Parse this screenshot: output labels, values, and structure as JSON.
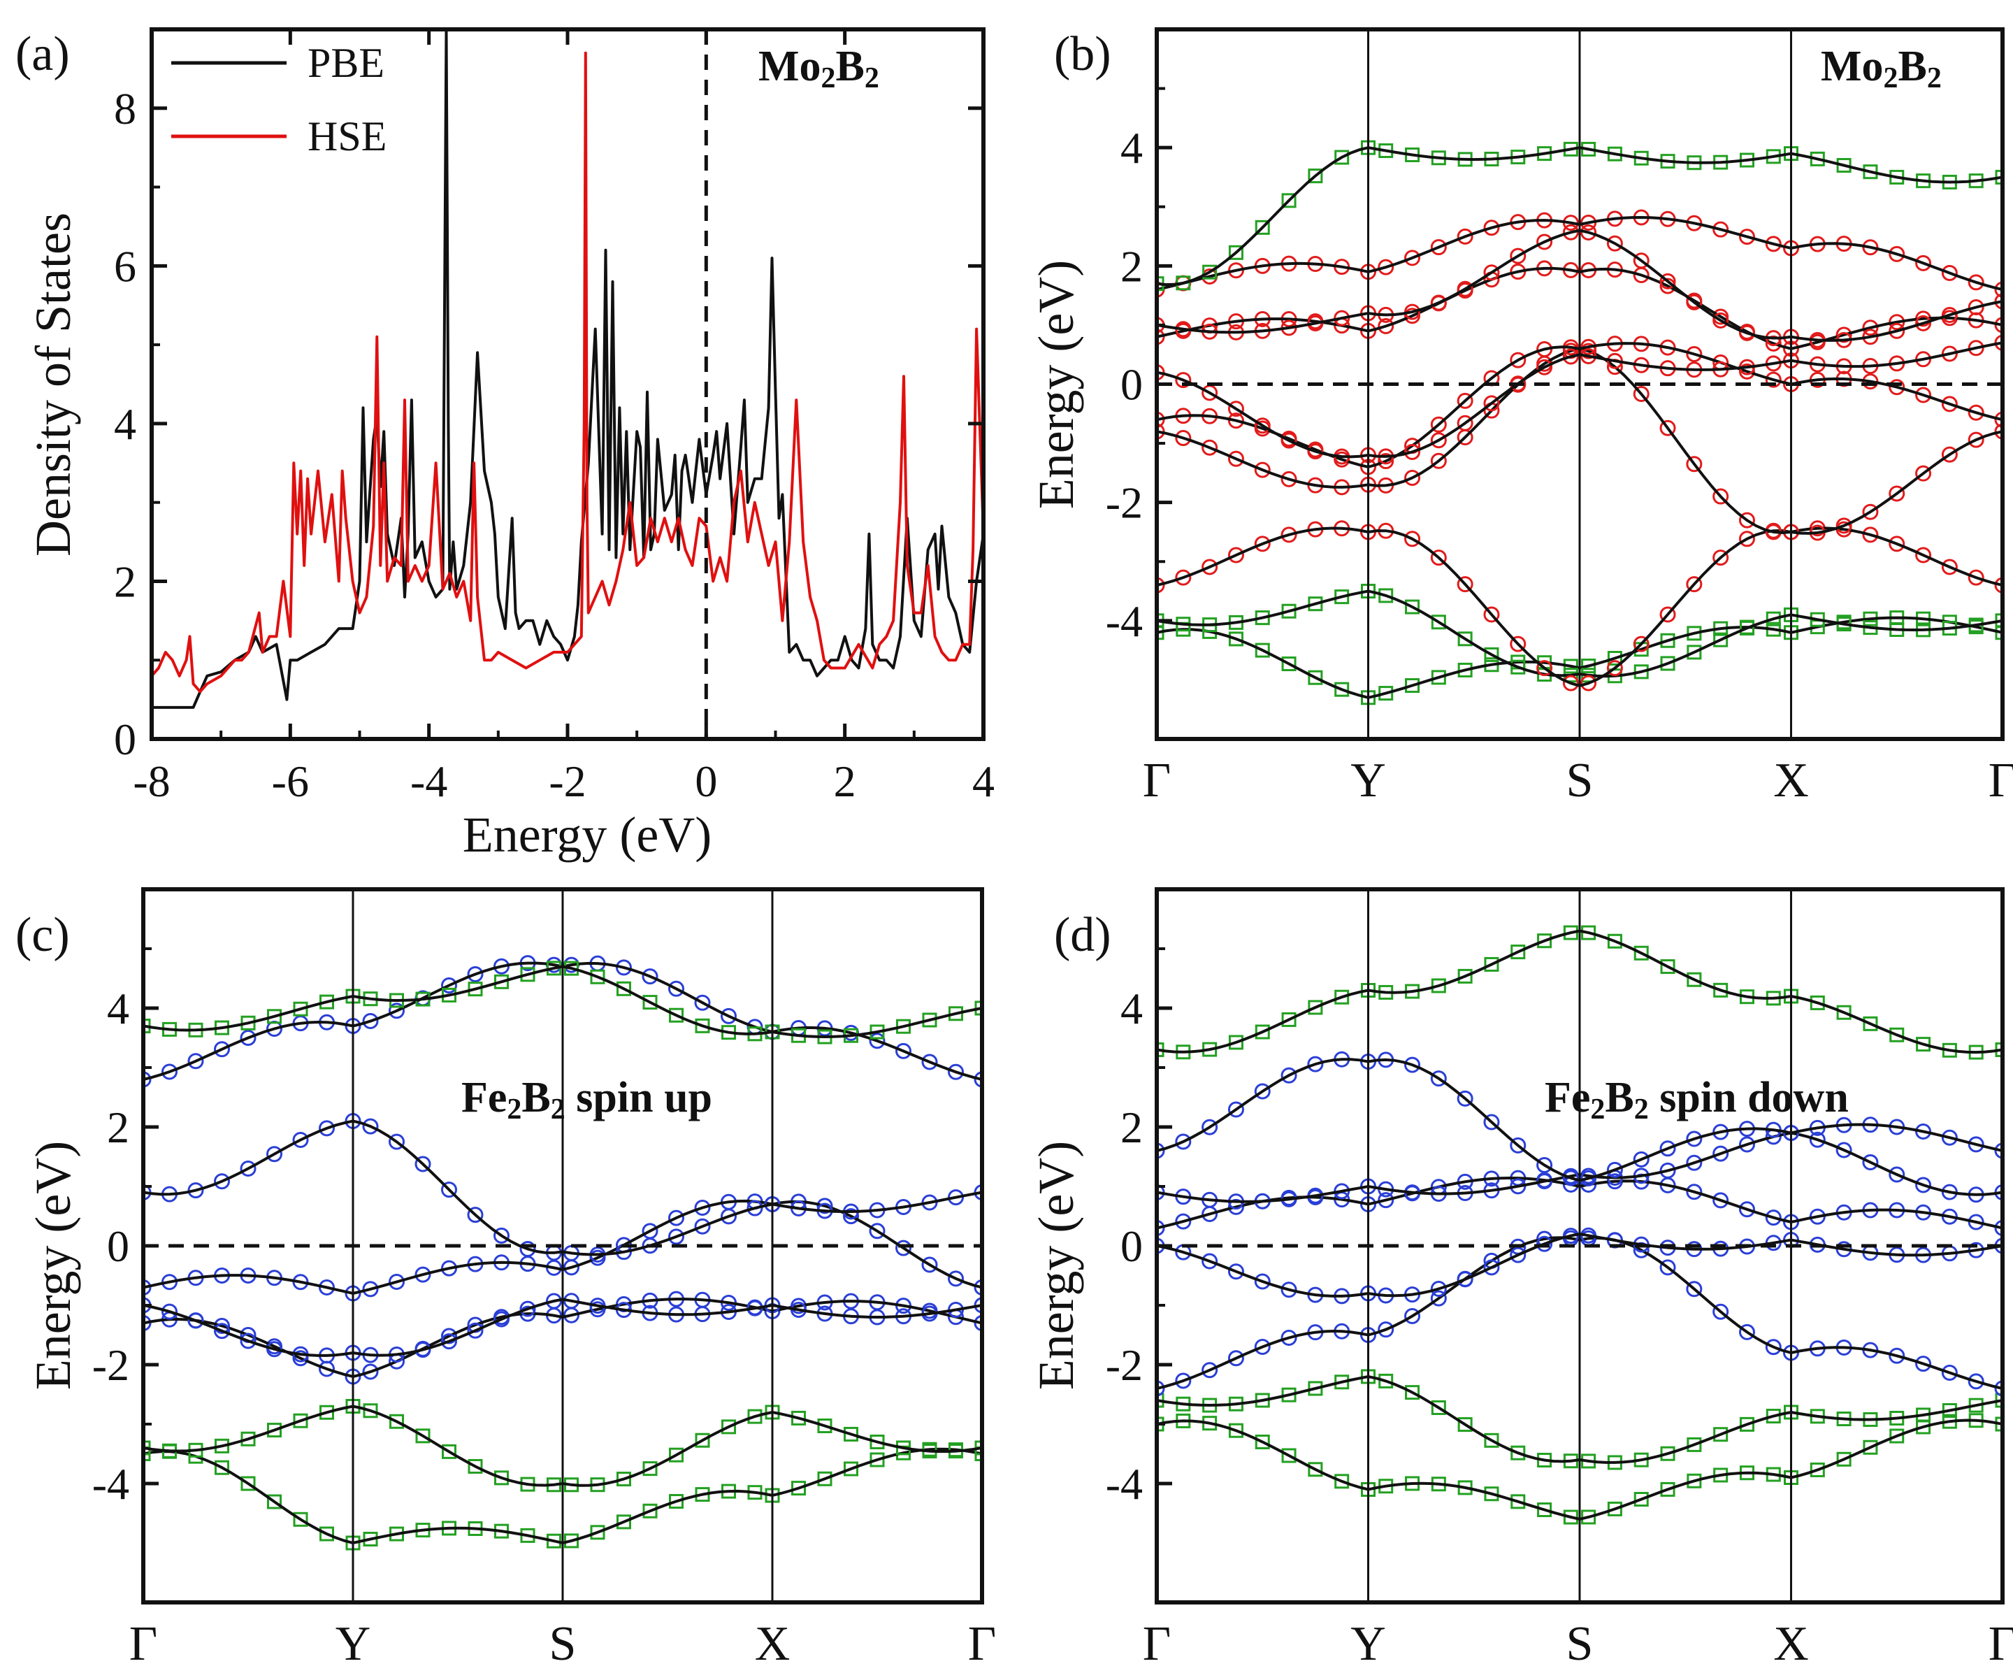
{
  "figure": {
    "panel_tags": [
      "(a)",
      "(b)",
      "(c)",
      "(d)"
    ]
  },
  "colors": {
    "pbe": "#111111",
    "hse": "#e01010",
    "boron_projection": "#23a021",
    "mo_projection": "#e21b1b",
    "fe_projection": "#2a3fd6",
    "band": "#111111",
    "axis": "#111111"
  },
  "chart_data": [
    {
      "panel": "(a)",
      "type": "line",
      "title": "Mo2B2",
      "title_main": "Mo",
      "title_sub1": "2",
      "title_mid": "B",
      "title_sub2": "2",
      "xlabel": "Energy (eV)",
      "ylabel": "Density of States",
      "xlim": [
        -8,
        4
      ],
      "ylim": [
        0,
        9
      ],
      "xticks": [
        "-8",
        "-6",
        "-4",
        "-2",
        "0",
        "2",
        "4"
      ],
      "xtick_values": [
        -8,
        -6,
        -4,
        -2,
        0,
        2,
        4
      ],
      "yticks": [
        "0",
        "2",
        "4",
        "6",
        "8"
      ],
      "ytick_values": [
        0,
        2,
        4,
        6,
        8
      ],
      "fermi_level": 0,
      "legend": [
        "PBE",
        "HSE"
      ],
      "series": [
        {
          "name": "PBE",
          "x": [
            -8.0,
            -7.4,
            -7.3,
            -7.2,
            -7.0,
            -6.8,
            -6.6,
            -6.5,
            -6.4,
            -6.2,
            -6.05,
            -6.0,
            -5.9,
            -5.7,
            -5.5,
            -5.3,
            -5.1,
            -5.0,
            -4.95,
            -4.9,
            -4.8,
            -4.75,
            -4.7,
            -4.65,
            -4.6,
            -4.5,
            -4.4,
            -4.35,
            -4.3,
            -4.25,
            -4.2,
            -4.1,
            -4.0,
            -3.9,
            -3.8,
            -3.75,
            -3.72,
            -3.7,
            -3.65,
            -3.6,
            -3.5,
            -3.4,
            -3.3,
            -3.2,
            -3.1,
            -3.05,
            -3.0,
            -2.9,
            -2.8,
            -2.75,
            -2.7,
            -2.6,
            -2.5,
            -2.4,
            -2.3,
            -2.2,
            -2.1,
            -2.0,
            -1.9,
            -1.85,
            -1.8,
            -1.7,
            -1.6,
            -1.5,
            -1.45,
            -1.4,
            -1.35,
            -1.3,
            -1.25,
            -1.2,
            -1.15,
            -1.1,
            -1.0,
            -0.95,
            -0.9,
            -0.85,
            -0.8,
            -0.75,
            -0.7,
            -0.6,
            -0.5,
            -0.45,
            -0.4,
            -0.35,
            -0.3,
            -0.2,
            -0.1,
            0.0,
            0.1,
            0.15,
            0.2,
            0.3,
            0.4,
            0.5,
            0.55,
            0.6,
            0.7,
            0.8,
            0.9,
            0.95,
            1.0,
            1.05,
            1.1,
            1.2,
            1.3,
            1.4,
            1.5,
            1.6,
            1.7,
            1.8,
            1.9,
            2.0,
            2.1,
            2.2,
            2.3,
            2.35,
            2.4,
            2.5,
            2.6,
            2.7,
            2.8,
            2.9,
            3.0,
            3.1,
            3.2,
            3.3,
            3.35,
            3.4,
            3.5,
            3.6,
            3.7,
            3.8,
            3.9,
            4.0
          ],
          "y": [
            0.4,
            0.4,
            0.6,
            0.8,
            0.85,
            1.0,
            1.1,
            1.3,
            1.1,
            1.2,
            0.5,
            1.0,
            1.0,
            1.1,
            1.2,
            1.4,
            1.4,
            2.0,
            4.2,
            2.5,
            3.8,
            4.1,
            3.2,
            3.9,
            2.6,
            2.2,
            2.8,
            1.8,
            2.6,
            4.3,
            2.3,
            2.5,
            2.0,
            1.8,
            1.9,
            9.0,
            4.0,
            1.9,
            2.5,
            1.9,
            2.2,
            3.0,
            4.9,
            3.4,
            3.0,
            2.6,
            1.8,
            1.4,
            2.8,
            1.6,
            1.4,
            1.5,
            1.5,
            1.2,
            1.5,
            1.3,
            1.2,
            1.0,
            1.3,
            1.7,
            2.5,
            3.5,
            5.2,
            2.6,
            6.2,
            2.4,
            5.8,
            2.3,
            4.2,
            2.6,
            3.9,
            2.4,
            3.9,
            3.7,
            2.3,
            4.4,
            2.4,
            2.6,
            3.8,
            2.9,
            3.1,
            3.6,
            2.4,
            3.4,
            3.6,
            3.0,
            3.8,
            3.1,
            3.6,
            3.9,
            3.3,
            4.0,
            2.6,
            3.7,
            4.3,
            3.0,
            3.3,
            3.3,
            4.2,
            6.1,
            4.4,
            2.8,
            3.1,
            1.1,
            1.2,
            1.0,
            1.0,
            0.8,
            0.9,
            1.0,
            1.0,
            1.3,
            1.0,
            0.9,
            1.4,
            2.6,
            1.2,
            1.0,
            1.0,
            0.9,
            1.3,
            2.8,
            1.5,
            1.3,
            2.4,
            2.6,
            1.9,
            2.7,
            1.8,
            1.6,
            1.2,
            1.1,
            2.0,
            2.6
          ]
        },
        {
          "name": "HSE",
          "x": [
            -8.0,
            -7.9,
            -7.8,
            -7.7,
            -7.6,
            -7.5,
            -7.45,
            -7.4,
            -7.3,
            -7.2,
            -7.0,
            -6.8,
            -6.7,
            -6.6,
            -6.45,
            -6.4,
            -6.3,
            -6.2,
            -6.1,
            -6.0,
            -5.95,
            -5.9,
            -5.85,
            -5.8,
            -5.75,
            -5.7,
            -5.6,
            -5.5,
            -5.4,
            -5.3,
            -5.25,
            -5.2,
            -5.1,
            -5.0,
            -4.9,
            -4.8,
            -4.75,
            -4.7,
            -4.65,
            -4.6,
            -4.5,
            -4.4,
            -4.35,
            -4.3,
            -4.2,
            -4.1,
            -4.0,
            -3.9,
            -3.8,
            -3.7,
            -3.6,
            -3.5,
            -3.4,
            -3.35,
            -3.3,
            -3.2,
            -3.1,
            -3.0,
            -2.8,
            -2.6,
            -2.4,
            -2.2,
            -2.0,
            -1.9,
            -1.8,
            -1.76,
            -1.74,
            -1.72,
            -1.7,
            -1.6,
            -1.5,
            -1.4,
            -1.3,
            -1.2,
            -1.1,
            -1.0,
            -0.9,
            -0.8,
            -0.7,
            -0.6,
            -0.5,
            -0.4,
            -0.3,
            -0.2,
            -0.1,
            0.0,
            0.1,
            0.2,
            0.3,
            0.4,
            0.5,
            0.6,
            0.7,
            0.8,
            0.9,
            1.0,
            1.1,
            1.2,
            1.3,
            1.4,
            1.5,
            1.6,
            1.7,
            1.8,
            1.9,
            2.0,
            2.2,
            2.4,
            2.5,
            2.6,
            2.7,
            2.8,
            2.85,
            2.9,
            3.0,
            3.1,
            3.2,
            3.3,
            3.4,
            3.5,
            3.6,
            3.7,
            3.8,
            3.85,
            3.9,
            4.0
          ],
          "y": [
            0.8,
            0.9,
            1.1,
            1.0,
            0.8,
            1.0,
            1.3,
            0.7,
            0.6,
            0.7,
            0.8,
            1.0,
            1.0,
            1.1,
            1.6,
            1.1,
            1.3,
            1.3,
            2.0,
            1.3,
            3.5,
            2.6,
            3.4,
            2.2,
            3.3,
            2.6,
            3.4,
            2.5,
            3.1,
            2.0,
            3.4,
            2.8,
            2.0,
            1.6,
            1.8,
            2.7,
            5.1,
            2.2,
            3.5,
            2.0,
            2.3,
            2.2,
            4.3,
            2.0,
            2.2,
            2.0,
            2.2,
            3.5,
            1.9,
            2.1,
            1.8,
            2.0,
            1.5,
            3.5,
            1.8,
            1.0,
            1.0,
            1.1,
            1.0,
            0.9,
            1.0,
            1.1,
            1.1,
            1.2,
            1.3,
            4.0,
            8.7,
            3.0,
            1.6,
            1.8,
            2.0,
            1.7,
            2.0,
            2.4,
            3.0,
            2.2,
            2.3,
            2.8,
            2.5,
            2.8,
            2.5,
            2.8,
            2.4,
            2.2,
            2.8,
            2.7,
            2.0,
            2.3,
            2.0,
            3.0,
            3.4,
            2.5,
            3.0,
            2.6,
            2.2,
            2.5,
            1.5,
            2.5,
            4.3,
            2.5,
            1.8,
            1.5,
            1.0,
            0.9,
            0.9,
            0.9,
            1.2,
            0.9,
            1.2,
            1.3,
            1.5,
            3.0,
            4.6,
            2.2,
            1.6,
            1.6,
            2.2,
            1.3,
            1.1,
            1.0,
            1.0,
            1.2,
            1.2,
            2.4,
            5.2,
            2.6
          ]
        }
      ]
    },
    {
      "panel": "(b)",
      "type": "line",
      "subtype": "band_structure",
      "title": "Mo2B2",
      "title_main": "Mo",
      "title_sub1": "2",
      "title_mid": "B",
      "title_sub2": "2",
      "ylabel": "Energy (eV)",
      "ylim": [
        -6,
        6
      ],
      "yticks": [
        "-4",
        "-2",
        "0",
        "2",
        "4"
      ],
      "ytick_values": [
        -4,
        -2,
        0,
        2,
        4
      ],
      "kpoints": [
        "Γ",
        "Y",
        "S",
        "X",
        "Γ"
      ],
      "fermi_level": 0,
      "projection_colors": [
        "#e21b1b",
        "#23a021"
      ],
      "bands_sampled_at_high_symmetry_points": [
        [
          -4.2,
          -5.3,
          -4.8,
          -4.2,
          -4.2
        ],
        [
          -4.0,
          -3.5,
          -4.9,
          -3.9,
          -4.0
        ],
        [
          -3.4,
          -2.5,
          -5.1,
          -2.5,
          -3.4
        ],
        [
          -0.8,
          -1.7,
          0.6,
          -2.5,
          -0.8
        ],
        [
          -0.6,
          -1.4,
          0.6,
          0.0,
          -0.6
        ],
        [
          0.2,
          -1.2,
          0.5,
          0.4,
          0.7
        ],
        [
          0.8,
          0.9,
          1.9,
          0.6,
          1.0
        ],
        [
          1.0,
          1.2,
          2.6,
          0.8,
          1.4
        ],
        [
          1.6,
          1.9,
          2.7,
          2.3,
          1.6
        ],
        [
          1.7,
          4.0,
          4.0,
          3.9,
          3.5
        ]
      ]
    },
    {
      "panel": "(c)",
      "type": "line",
      "subtype": "band_structure",
      "title": "Fe2B2 spin up",
      "title_main": "Fe",
      "title_sub1": "2",
      "title_mid": "B",
      "title_sub2": "2",
      "title_tail": " spin up",
      "ylabel": "Energy (eV)",
      "ylim": [
        -6,
        6
      ],
      "yticks": [
        "-4",
        "-2",
        "0",
        "2",
        "4"
      ],
      "ytick_values": [
        -4,
        -2,
        0,
        2,
        4
      ],
      "kpoints": [
        "Γ",
        "Y",
        "S",
        "X",
        "Γ"
      ],
      "fermi_level": 0,
      "projection_colors": [
        "#2a3fd6",
        "#23a021"
      ],
      "bands_sampled_at_high_symmetry_points": [
        [
          -3.5,
          -5.0,
          -5.0,
          -4.2,
          -3.5
        ],
        [
          -3.4,
          -2.7,
          -4.0,
          -2.8,
          -3.4
        ],
        [
          -1.3,
          -2.2,
          -1.2,
          -1.1,
          -1.3
        ],
        [
          -1.0,
          -1.8,
          -0.9,
          -1.0,
          -1.0
        ],
        [
          -0.7,
          -0.8,
          -0.4,
          0.7,
          -0.7
        ],
        [
          0.9,
          2.1,
          -0.1,
          0.7,
          0.9
        ],
        [
          2.8,
          3.7,
          4.7,
          3.6,
          2.8
        ],
        [
          3.7,
          4.2,
          4.7,
          3.6,
          4.0
        ]
      ]
    },
    {
      "panel": "(d)",
      "type": "line",
      "subtype": "band_structure",
      "title": "Fe2B2 spin down",
      "title_main": "Fe",
      "title_sub1": "2",
      "title_mid": "B",
      "title_sub2": "2",
      "title_tail": " spin down",
      "ylabel": "Energy (eV)",
      "ylim": [
        -6,
        6
      ],
      "yticks": [
        "-4",
        "-2",
        "0",
        "2",
        "4"
      ],
      "ytick_values": [
        -4,
        -2,
        0,
        2,
        4
      ],
      "kpoints": [
        "Γ",
        "Y",
        "S",
        "X",
        "Γ"
      ],
      "fermi_level": 0,
      "projection_colors": [
        "#2a3fd6",
        "#23a021"
      ],
      "bands_sampled_at_high_symmetry_points": [
        [
          -3.0,
          -4.1,
          -4.6,
          -3.9,
          -3.0
        ],
        [
          -2.6,
          -2.2,
          -3.6,
          -2.8,
          -2.6
        ],
        [
          -2.4,
          -1.5,
          0.1,
          -1.8,
          -2.4
        ],
        [
          0.0,
          -0.8,
          0.2,
          0.1,
          0.0
        ],
        [
          0.3,
          0.7,
          1.0,
          0.4,
          0.3
        ],
        [
          0.9,
          1.0,
          1.2,
          1.9,
          0.9
        ],
        [
          1.6,
          3.1,
          1.1,
          1.9,
          1.6
        ],
        [
          3.3,
          4.3,
          5.3,
          4.2,
          3.3
        ]
      ]
    }
  ]
}
